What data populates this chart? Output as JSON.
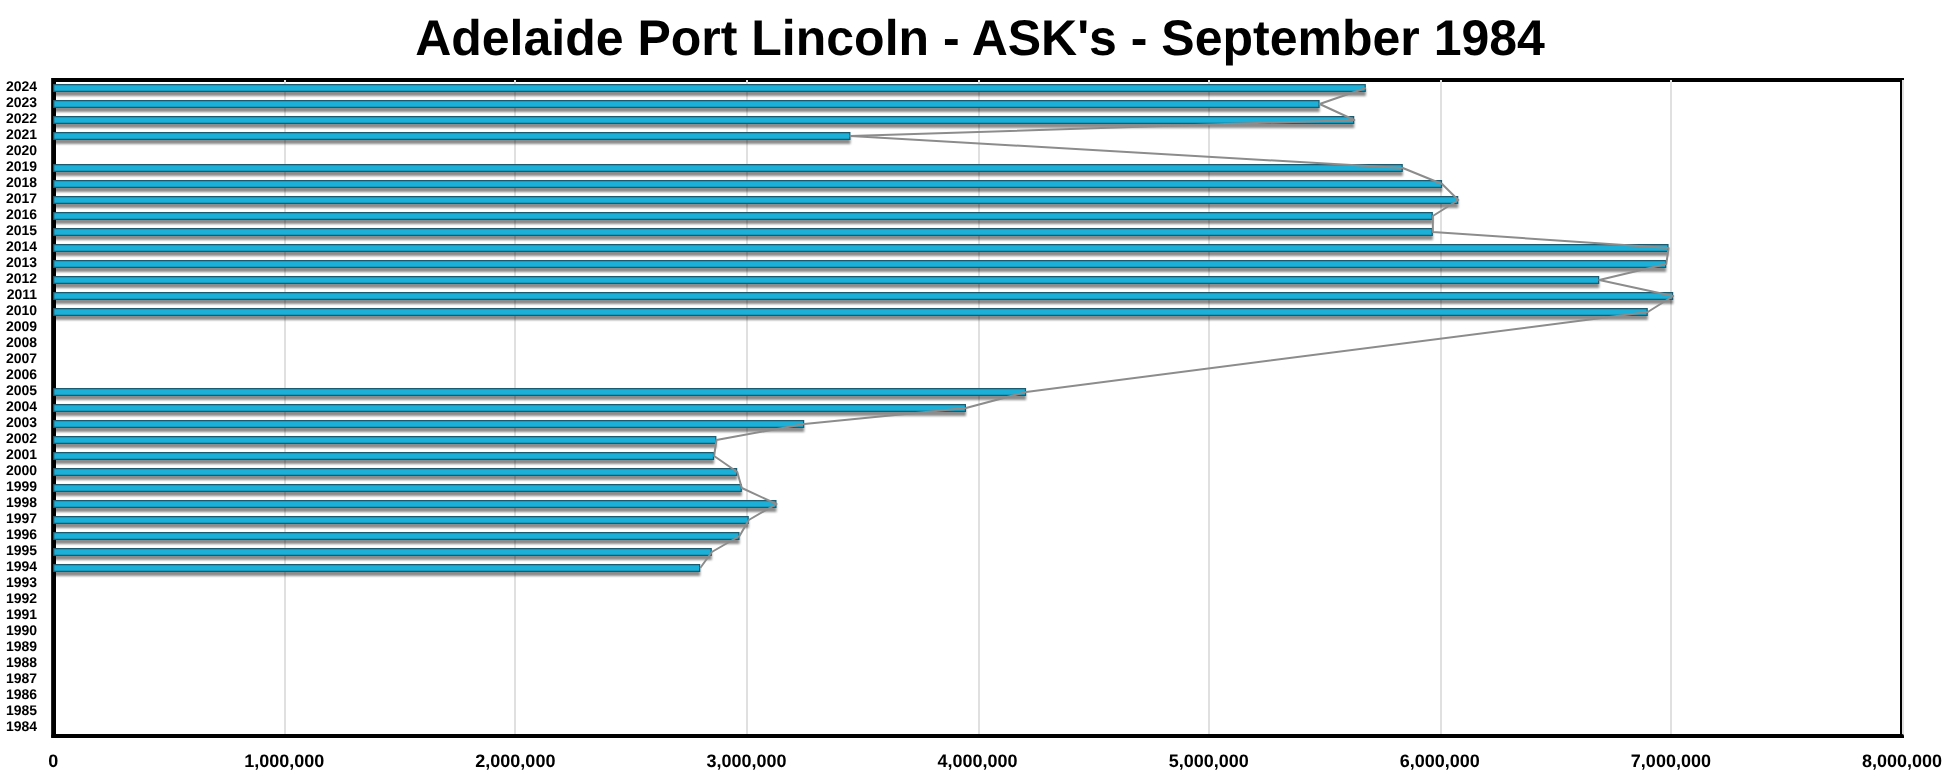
{
  "chart_data": {
    "type": "bar",
    "orientation": "horizontal",
    "title": "Adelaide Port Lincoln - ASK's - September 1984",
    "categories": [
      "2024",
      "2023",
      "2022",
      "2021",
      "2020",
      "2019",
      "2018",
      "2017",
      "2016",
      "2015",
      "2014",
      "2013",
      "2012",
      "2011",
      "2010",
      "2009",
      "2008",
      "2007",
      "2006",
      "2005",
      "2004",
      "2003",
      "2002",
      "2001",
      "2000",
      "1999",
      "1998",
      "1997",
      "1996",
      "1995",
      "1994",
      "1993",
      "1992",
      "1991",
      "1990",
      "1989",
      "1988",
      "1987",
      "1986",
      "1985",
      "1984"
    ],
    "series": [
      {
        "color": "#1ab0d8",
        "values": [
          5680000,
          5480000,
          5630000,
          3450000,
          null,
          5840000,
          6010000,
          6080000,
          5970000,
          5970000,
          6990000,
          6980000,
          6690000,
          7010000,
          6900000,
          null,
          null,
          null,
          null,
          4210000,
          3950000,
          3250000,
          2870000,
          2860000,
          2960000,
          2980000,
          3130000,
          3010000,
          2970000,
          2850000,
          2800000,
          null,
          null,
          null,
          null,
          null,
          null,
          null,
          null,
          null,
          null
        ]
      },
      {
        "type": "line",
        "color": "#8c8c8c",
        "marker": "none",
        "values": [
          5680000,
          5480000,
          5630000,
          3450000,
          null,
          5840000,
          6010000,
          6080000,
          5970000,
          5970000,
          6990000,
          6980000,
          6690000,
          7010000,
          6900000,
          null,
          null,
          null,
          null,
          4210000,
          3950000,
          3250000,
          2870000,
          2860000,
          2960000,
          2980000,
          3130000,
          3010000,
          2970000,
          2850000,
          2800000,
          null,
          null,
          null,
          null,
          null,
          null,
          null,
          null,
          null,
          null
        ]
      }
    ],
    "xlim": [
      0,
      8000000
    ],
    "xticks": [
      0,
      {
        "value": 1000000,
        "label": "1,000,000"
      },
      {
        "value": 2000000,
        "label": "2,000,000"
      },
      {
        "value": 3000000,
        "label": "3,000,000"
      },
      {
        "value": 4000000,
        "label": "4,000,000"
      },
      {
        "value": 5000000,
        "label": "5,000,000"
      },
      {
        "value": 6000000,
        "label": "6,000,000"
      },
      {
        "value": 7000000,
        "label": "7,000,000"
      },
      {
        "value": 8000000,
        "label": "8,000,000"
      }
    ],
    "grid": "x"
  }
}
